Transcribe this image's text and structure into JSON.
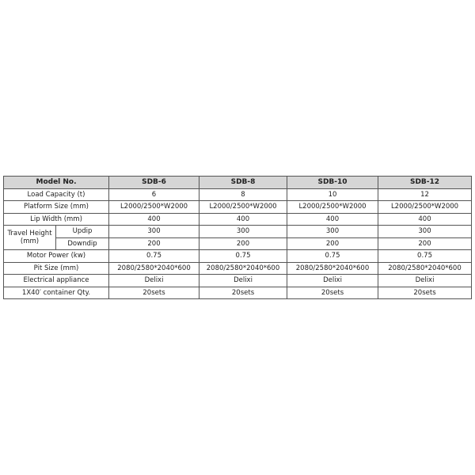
{
  "table": {
    "headers": [
      "Model No.",
      "SDB-6",
      "SDB-8",
      "SDB-10",
      "SDB-12"
    ],
    "rows": [
      {
        "label": "Load Capacity (t)",
        "values": [
          "6",
          "8",
          "10",
          "12"
        ]
      },
      {
        "label": "Platform Size (mm)",
        "values": [
          "L2000/2500*W2000",
          "L2000/2500*W2000",
          "L2000/2500*W2000",
          "L2000/2500*W2000"
        ]
      },
      {
        "label": "Lip Width (mm)",
        "values": [
          "400",
          "400",
          "400",
          "400"
        ]
      },
      {
        "group": "Travel Height (mm)",
        "label": "Updip",
        "values": [
          "300",
          "300",
          "300",
          "300"
        ]
      },
      {
        "label": "Downdip",
        "values": [
          "200",
          "200",
          "200",
          "200"
        ]
      },
      {
        "label": "Motor Power (kw)",
        "values": [
          "0.75",
          "0.75",
          "0.75",
          "0.75"
        ]
      },
      {
        "label": "Pit Size (mm)",
        "values": [
          "2080/2580*2040*600",
          "2080/2580*2040*600",
          "2080/2580*2040*600",
          "2080/2580*2040*600"
        ]
      },
      {
        "label": "Electrical appliance",
        "values": [
          "Delixi",
          "Delixi",
          "Delixi",
          "Delixi"
        ]
      },
      {
        "label": "1X40′  container Qty.",
        "values": [
          "20sets",
          "20sets",
          "20sets",
          "20sets"
        ]
      }
    ]
  }
}
